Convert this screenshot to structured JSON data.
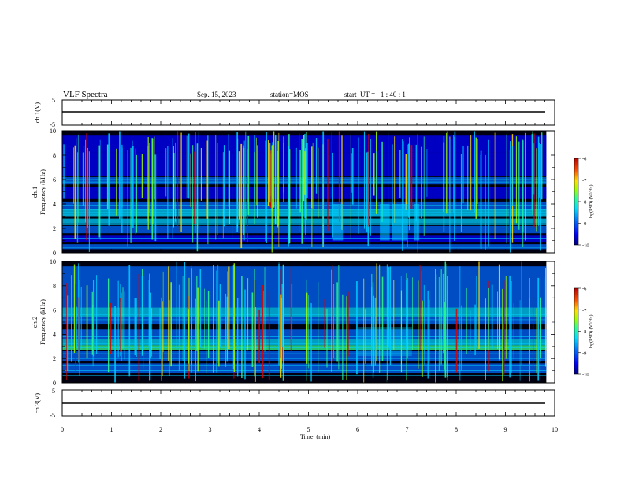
{
  "chart_data": {
    "type": "heatmap",
    "title": "VLF Spectra",
    "date": "Sep. 15, 2023",
    "station": "station=MOS",
    "start": "start  UT =   1 : 40 : 1",
    "xlabel": "Time  (min)",
    "xlim": [
      0,
      10
    ],
    "x_ticks": [
      "0",
      "1",
      "2",
      "3",
      "4",
      "5",
      "6",
      "7",
      "8",
      "9",
      "10"
    ],
    "data_end_min": 9.83,
    "panels": [
      {
        "id": "ch1-waveform",
        "ylabel": "ch.1(V)",
        "ylim": [
          -5,
          5
        ],
        "y_ticks": [
          "5",
          "-5"
        ],
        "trace_level": 0
      },
      {
        "id": "ch1-spectrogram",
        "ylabel_line1": "ch.1",
        "ylabel_line2": "Frequency  (kHz)",
        "ylim": [
          0,
          10
        ],
        "y_ticks": [
          "0",
          "2",
          "4",
          "6",
          "8",
          "10"
        ],
        "colorbar": {
          "label": "log(PSD) (V²/Hz)",
          "range": [
            -10,
            -6
          ],
          "ticks": [
            "-6",
            "-7",
            "-8",
            "-9",
            "-10"
          ]
        }
      },
      {
        "id": "ch2-spectrogram",
        "ylabel_line1": "ch.2",
        "ylabel_line2": "Frequency  (kHz)",
        "ylim": [
          0,
          10
        ],
        "y_ticks": [
          "0",
          "2",
          "4",
          "6",
          "8",
          "10"
        ],
        "colorbar": {
          "label": "log(PSD) (V²/Hz)",
          "range": [
            -10,
            -6
          ],
          "ticks": [
            "-6",
            "-7",
            "-8",
            "-9",
            "-10"
          ]
        }
      },
      {
        "id": "ch3-waveform",
        "ylabel": "ch.3(V)",
        "ylim": [
          -5,
          5
        ],
        "y_ticks": [
          "5",
          "-5"
        ],
        "trace_level": 0
      }
    ],
    "colors": {
      "colormap": [
        "#00007f",
        "#0000ff",
        "#0066ff",
        "#00d0ff",
        "#30ff90",
        "#a0ff00",
        "#ffe000",
        "#ff6000",
        "#e00000"
      ],
      "background": "#000010",
      "trace": "#000000"
    }
  }
}
